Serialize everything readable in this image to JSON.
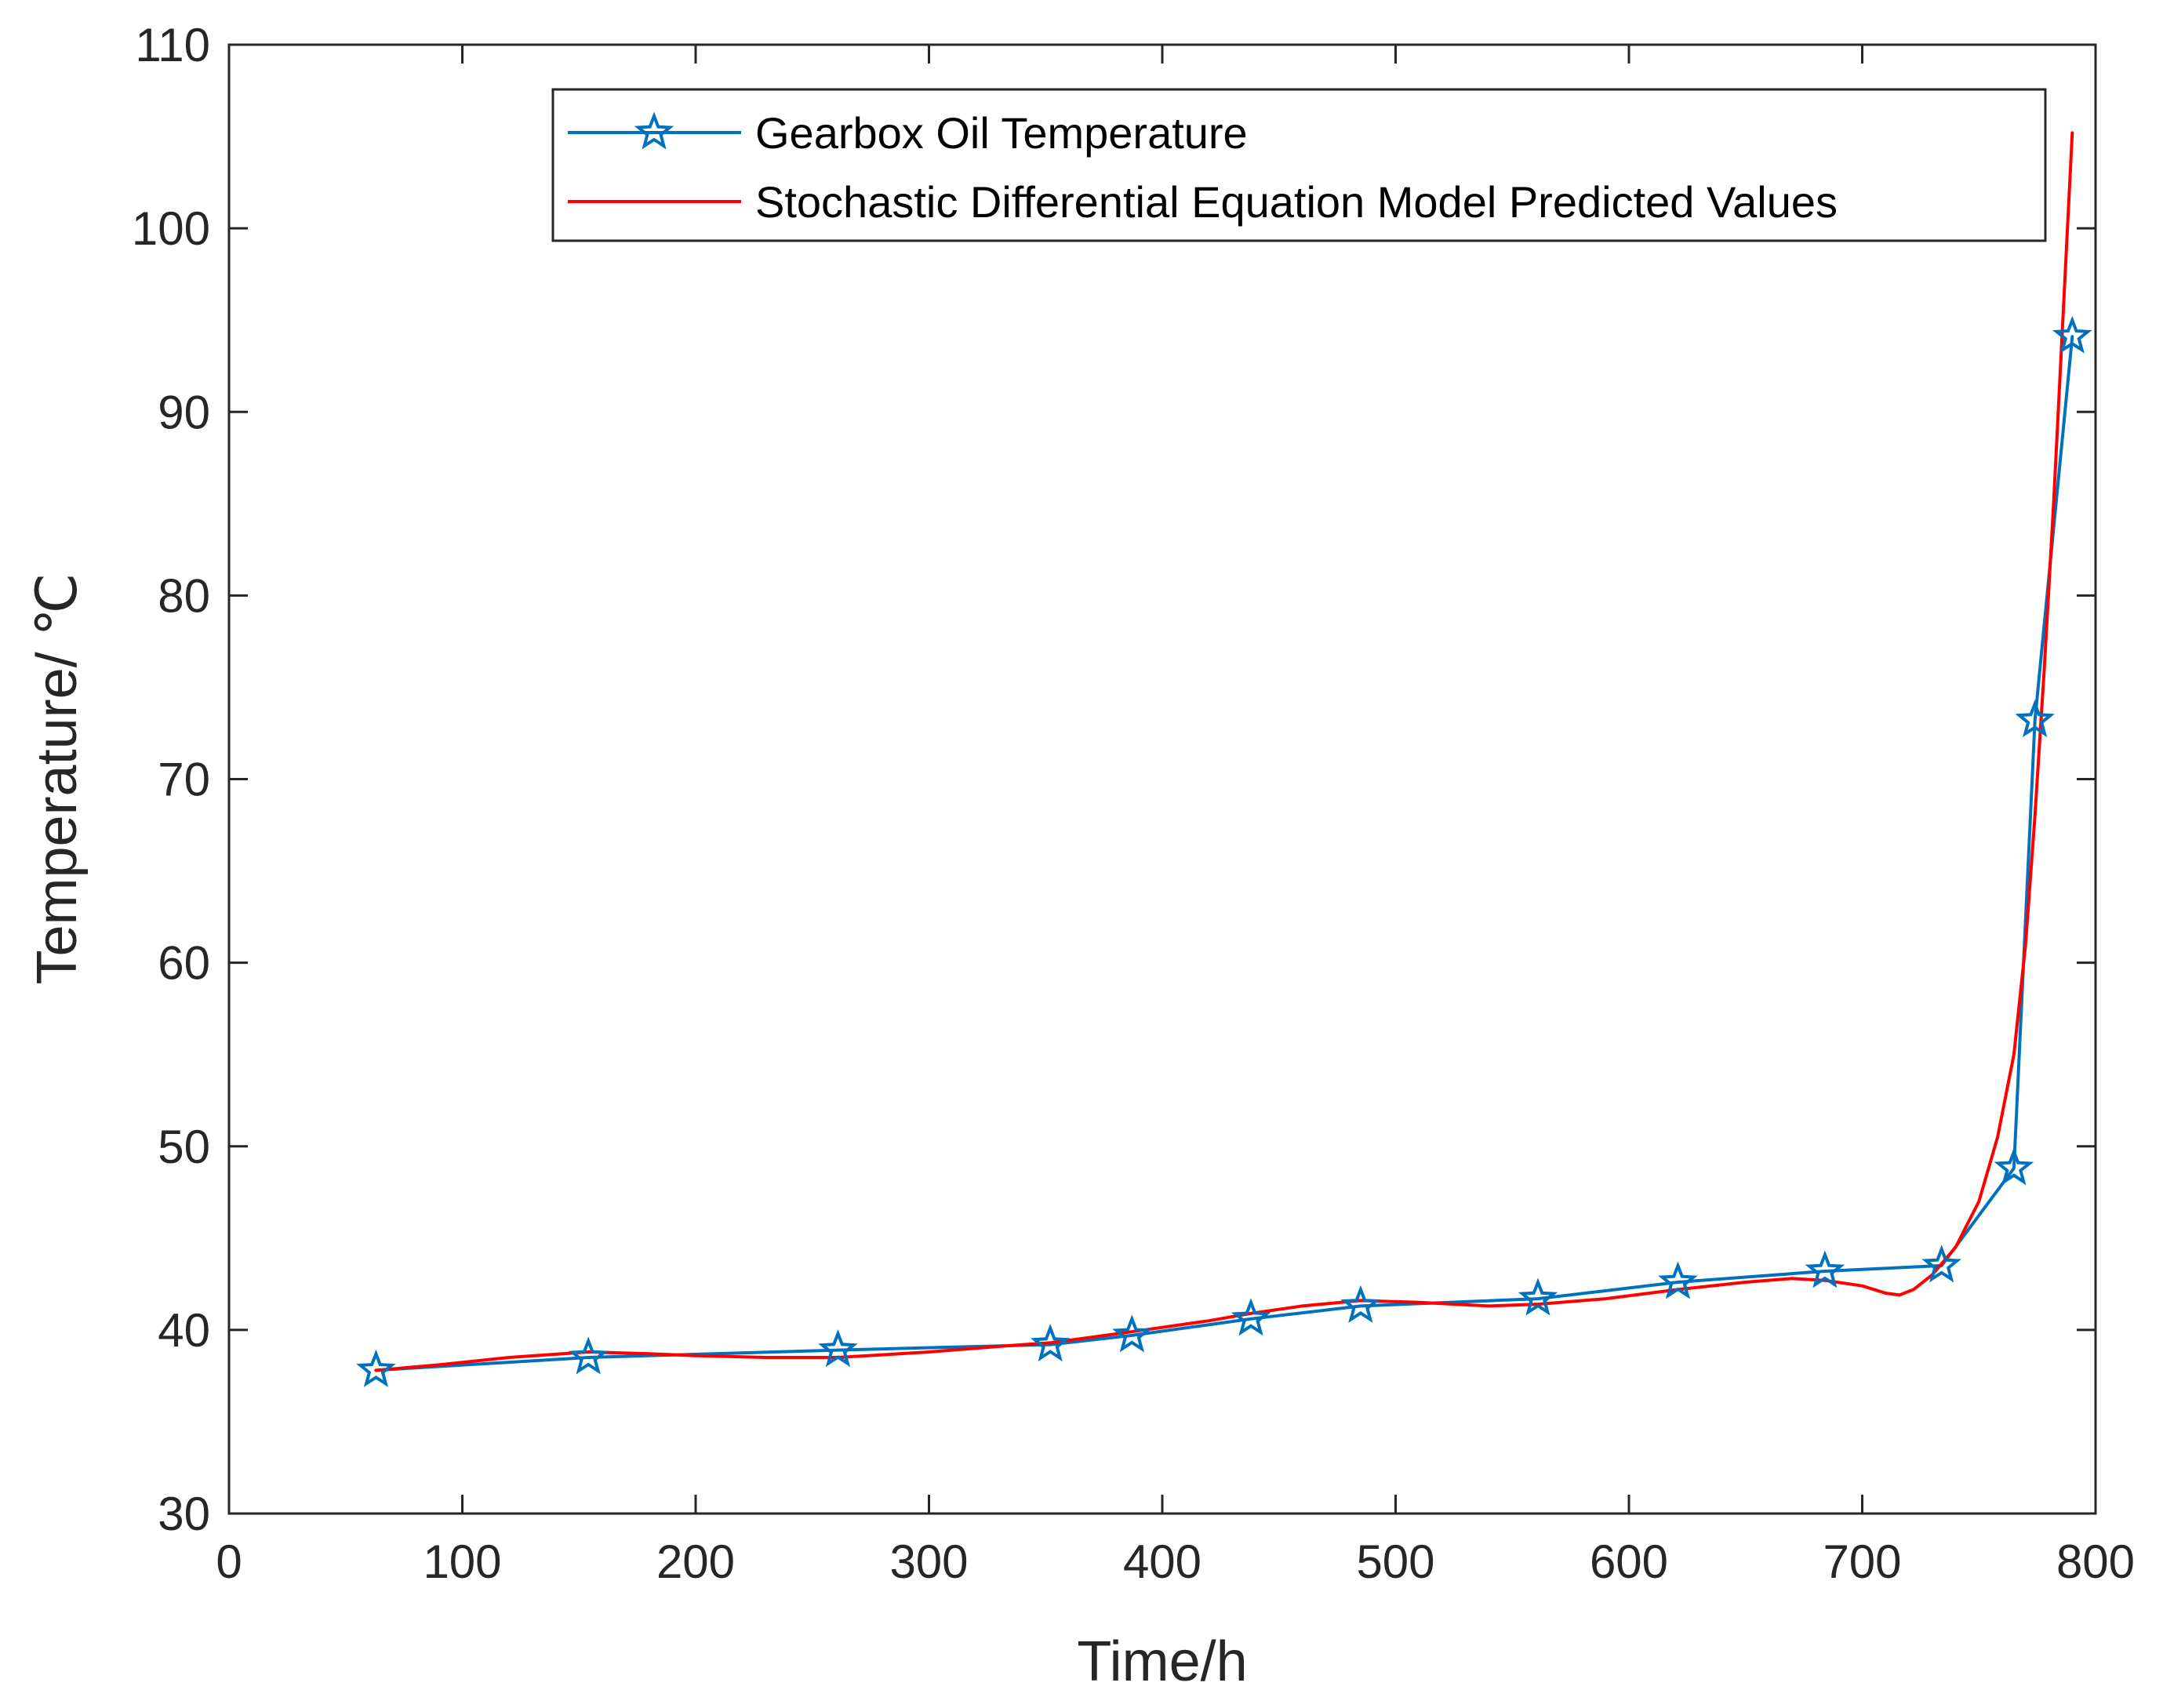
{
  "chart_data": {
    "type": "line",
    "title": "",
    "xlabel": "Time/h",
    "ylabel": "Temperature/ ℃",
    "xlim": [
      0,
      800
    ],
    "ylim": [
      30,
      110
    ],
    "xticks": [
      0,
      100,
      200,
      300,
      400,
      500,
      600,
      700,
      800
    ],
    "yticks": [
      30,
      40,
      50,
      60,
      70,
      80,
      90,
      100,
      110
    ],
    "grid": false,
    "legend_position": "top-right",
    "series": [
      {
        "name": "Gearbox Oil Temperature",
        "color": "#0072BD",
        "marker": "star",
        "x": [
          63,
          154,
          261,
          352,
          387,
          438,
          485,
          561,
          621,
          684,
          734,
          765,
          774,
          790
        ],
        "y": [
          37.8,
          38.5,
          38.9,
          39.2,
          39.7,
          40.6,
          41.3,
          41.7,
          42.6,
          43.2,
          43.5,
          48.8,
          73.2,
          94.1
        ]
      },
      {
        "name": "Stochastic Differential Equation Model Predicted Values",
        "color": "#FF0000",
        "marker": "none",
        "x": [
          63,
          90,
          120,
          154,
          180,
          200,
          230,
          261,
          300,
          330,
          352,
          387,
          420,
          438,
          460,
          485,
          510,
          540,
          561,
          590,
          621,
          650,
          670,
          684,
          700,
          710,
          716,
          722,
          730,
          740,
          750,
          758,
          765,
          770,
          774,
          778,
          782,
          786,
          790
        ],
        "y": [
          37.8,
          38.1,
          38.5,
          38.8,
          38.7,
          38.6,
          38.5,
          38.5,
          38.8,
          39.1,
          39.3,
          39.9,
          40.5,
          40.9,
          41.3,
          41.6,
          41.5,
          41.3,
          41.4,
          41.7,
          42.2,
          42.6,
          42.8,
          42.7,
          42.4,
          42.0,
          41.9,
          42.2,
          43.0,
          44.5,
          47.0,
          50.5,
          55.0,
          61.0,
          68.0,
          76.0,
          85.0,
          95.0,
          105.2
        ]
      }
    ]
  }
}
